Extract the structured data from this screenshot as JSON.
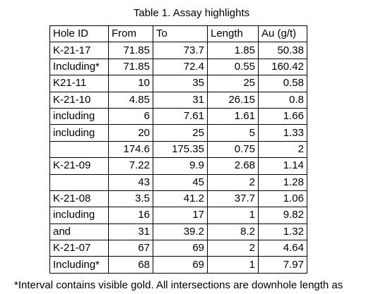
{
  "caption": "Table 1. Assay highlights",
  "table": {
    "headers": [
      "Hole ID",
      "From",
      "To",
      "Length",
      "Au (g/t)"
    ],
    "rows": [
      [
        "K-21-17",
        "71.85",
        "73.7",
        "1.85",
        "50.38"
      ],
      [
        "Including*",
        "71.85",
        "72.4",
        "0.55",
        "160.42"
      ],
      [
        "K21-11",
        "10",
        "35",
        "25",
        "0.58"
      ],
      [
        "K-21-10",
        "4.85",
        "31",
        "26.15",
        "0.8"
      ],
      [
        "including",
        "6",
        "7.61",
        "1.61",
        "1.66"
      ],
      [
        "including",
        "20",
        "25",
        "5",
        "1.33"
      ],
      [
        "",
        "174.6",
        "175.35",
        "0.75",
        "2"
      ],
      [
        "K-21-09",
        "7.22",
        "9.9",
        "2.68",
        "1.14"
      ],
      [
        "",
        "43",
        "45",
        "2",
        "1.28"
      ],
      [
        "K-21-08",
        "3.5",
        "41.2",
        "37.7",
        "1.06"
      ],
      [
        "including",
        "16",
        "17",
        "1",
        "9.82"
      ],
      [
        "and",
        "31",
        "39.2",
        "8.2",
        "1.32"
      ],
      [
        "K-21-07",
        "67",
        "69",
        "2",
        "4.64"
      ],
      [
        "Including*",
        "68",
        "69",
        "1",
        "7.97"
      ]
    ]
  },
  "footnote": "*Interval contains visible gold. All intersections are downhole length as"
}
